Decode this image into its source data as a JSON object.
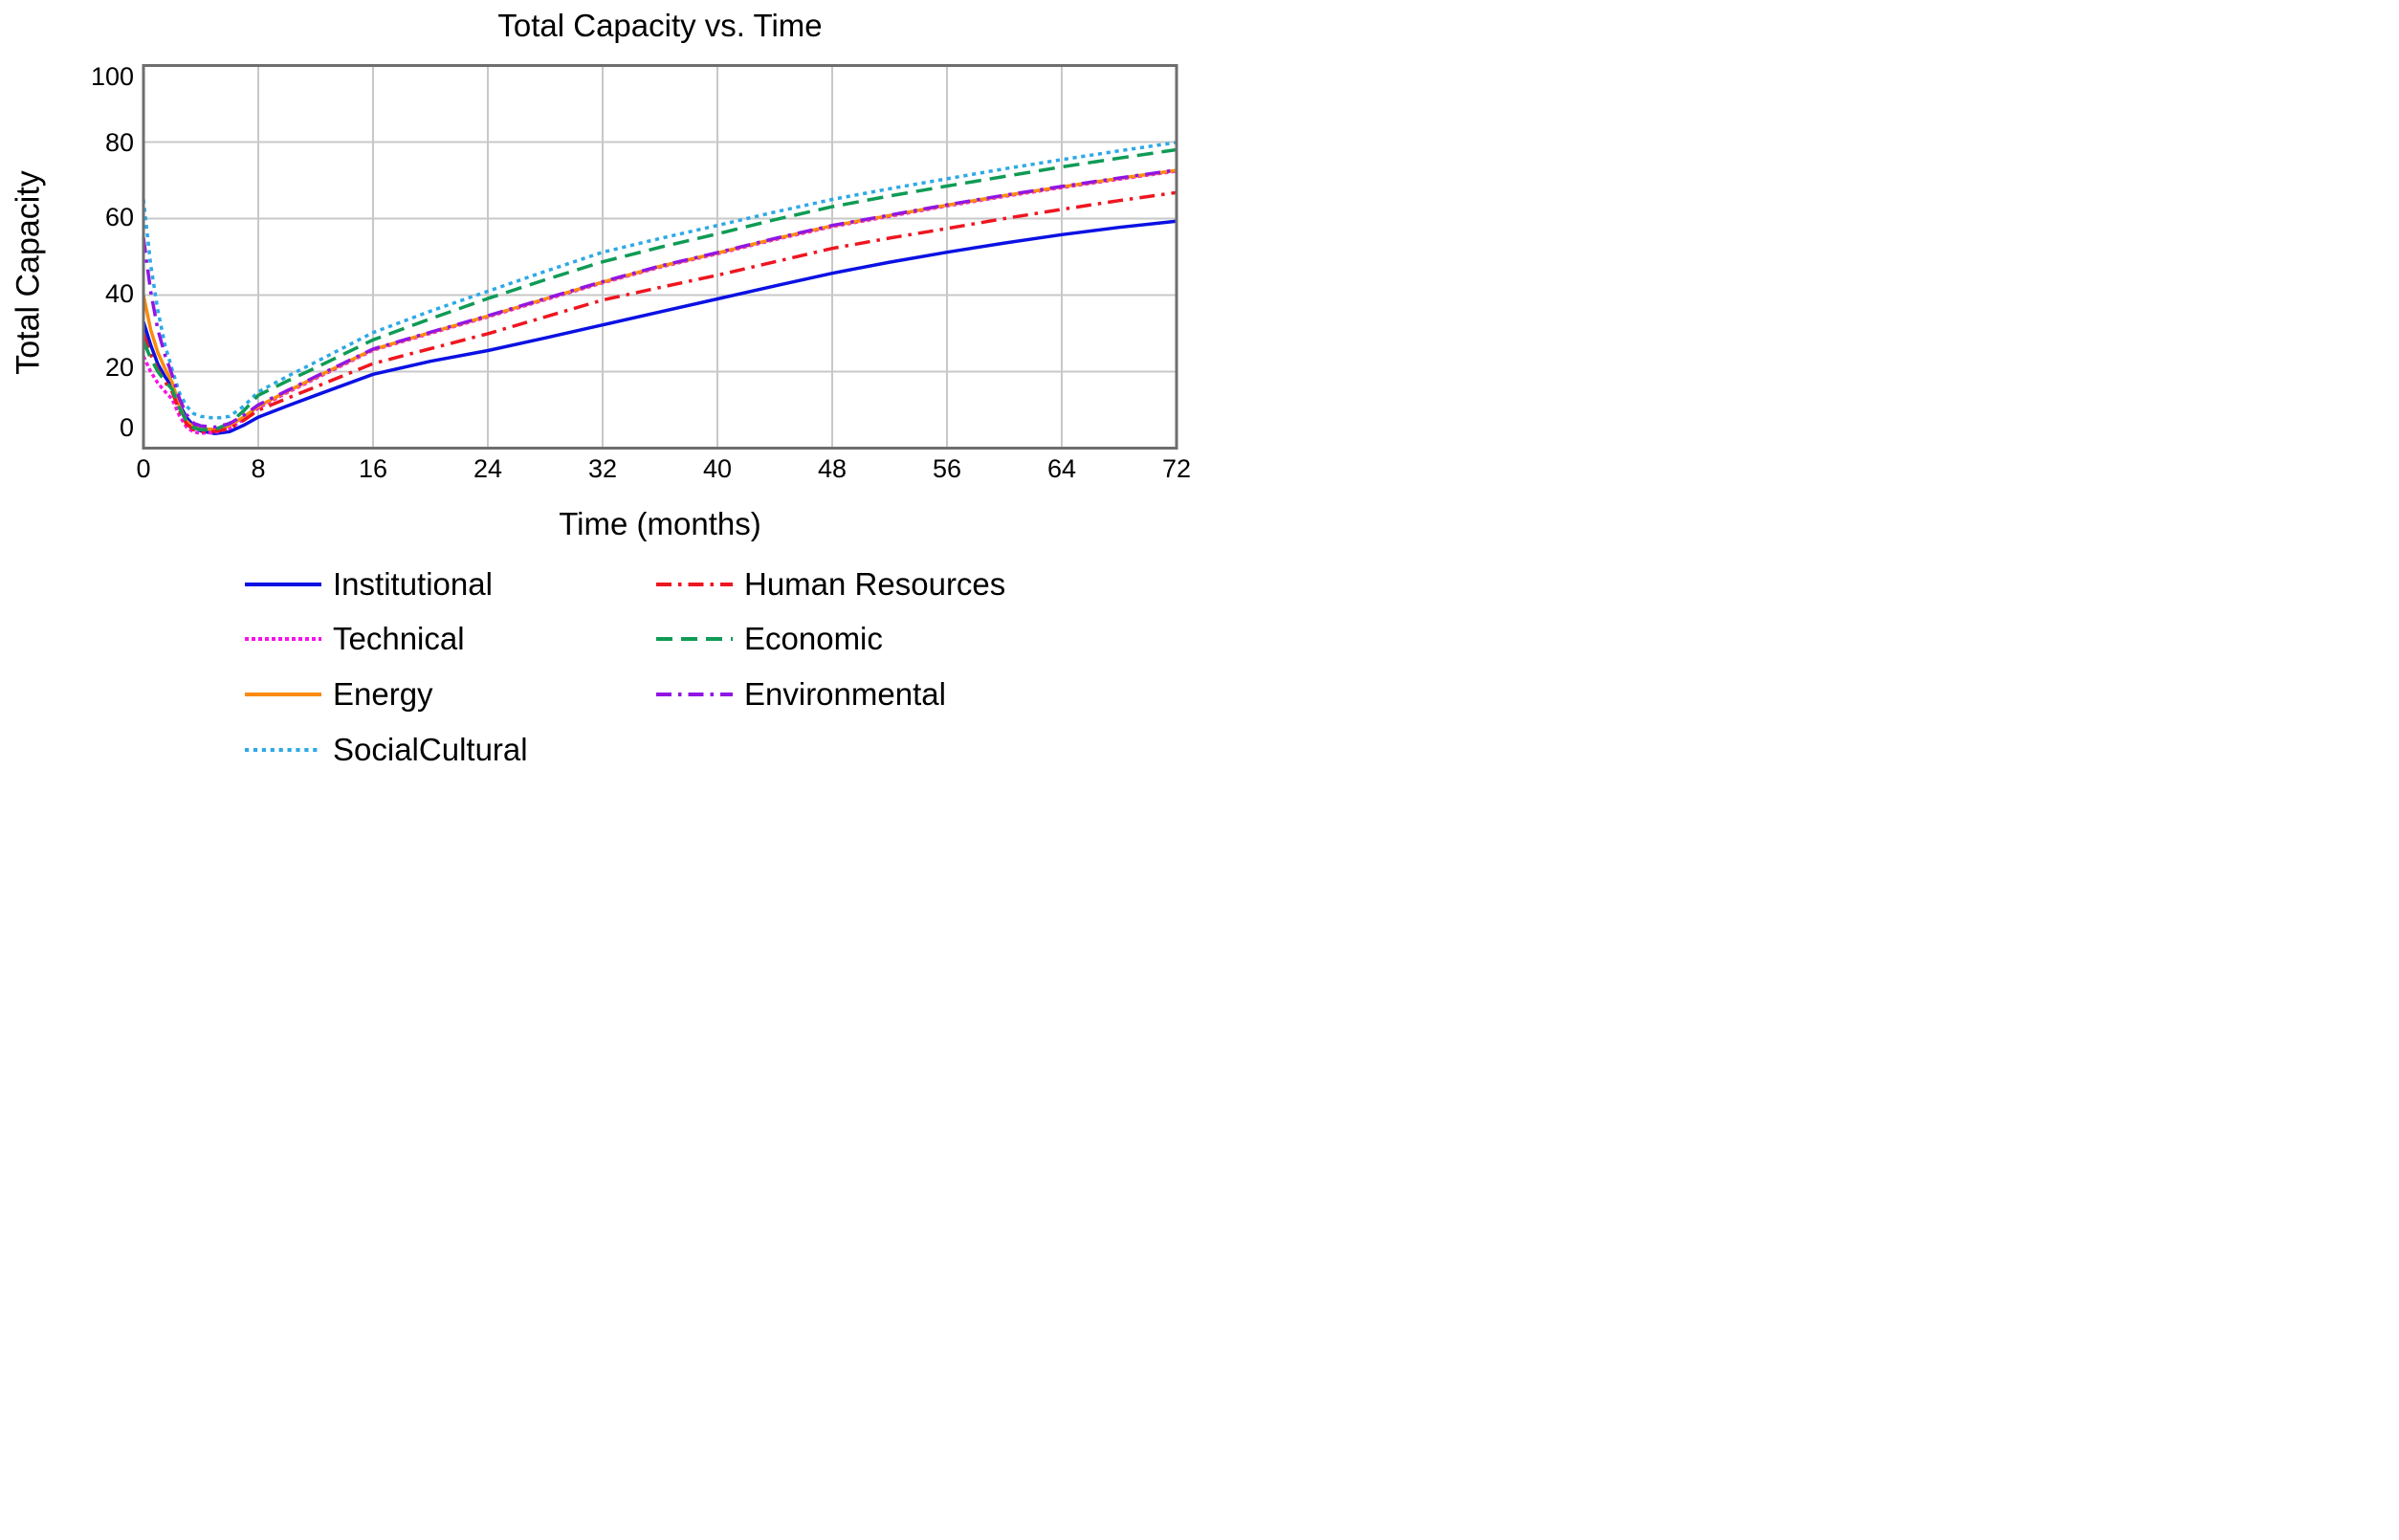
{
  "title": "Total Capacity vs. Time",
  "colors": {
    "background": "#ffffff",
    "grid": "#c8c8c8",
    "frame": "#6e6e6e",
    "text": "#000000"
  },
  "chart_data": {
    "type": "line",
    "title": "Total Capacity vs. Time",
    "xlabel": "Time (months)",
    "ylabel": "Total Capacity",
    "xlim": [
      0,
      72
    ],
    "ylim": [
      0,
      100
    ],
    "x_ticks": [
      0,
      8,
      16,
      24,
      32,
      40,
      48,
      56,
      64,
      72
    ],
    "y_ticks": [
      100,
      80,
      60,
      40,
      20,
      0
    ],
    "grid": true,
    "legend_position": "bottom",
    "x": [
      0,
      0.5,
      1,
      1.5,
      2,
      2.5,
      3,
      3.5,
      4,
      5,
      6,
      7,
      8,
      10,
      12,
      16,
      20,
      24,
      28,
      32,
      36,
      40,
      44,
      48,
      52,
      56,
      60,
      64,
      68,
      72
    ],
    "series": [
      {
        "name": "Institutional",
        "color": "#0b11e3",
        "dash": "solid",
        "values": [
          33,
          27,
          22,
          18.7,
          16,
          11.5,
          8,
          5.8,
          4.5,
          3.8,
          4.3,
          6,
          8.1,
          11,
          13.8,
          19.3,
          22.7,
          25.5,
          28.8,
          32.2,
          35.6,
          39,
          42.4,
          45.7,
          48.6,
          51.2,
          53.6,
          55.8,
          57.7,
          59.3
        ]
      },
      {
        "name": "Technical",
        "color": "#f812e8",
        "dash": "dotted-fine",
        "values": [
          24,
          20,
          17,
          14.8,
          12.8,
          8.5,
          5.5,
          4.2,
          3.9,
          4.1,
          5.2,
          7.6,
          10.5,
          14.5,
          18.2,
          25.6,
          30,
          34.3,
          38.8,
          43.2,
          47.3,
          50.8,
          54.5,
          57.9,
          60.6,
          63.3,
          65.8,
          68.1,
          70.3,
          72.4
        ]
      },
      {
        "name": "Energy",
        "color": "#fb8b0e",
        "dash": "solid",
        "values": [
          40,
          31,
          25,
          20.8,
          17.2,
          11,
          7,
          5.4,
          5,
          4.9,
          5.9,
          8.2,
          10.9,
          14.8,
          18.5,
          25.8,
          30.2,
          34.5,
          39,
          43.4,
          47.5,
          51,
          54.7,
          58.1,
          60.8,
          63.5,
          66,
          68.3,
          70.5,
          72.6
        ]
      },
      {
        "name": "SocialCultural",
        "color": "#2ea9e6",
        "dash": "dotted",
        "values": [
          65,
          48,
          36,
          27,
          20.5,
          14.5,
          11,
          9,
          8.3,
          7.8,
          8.3,
          11,
          14.7,
          18.7,
          22.5,
          30.2,
          35.8,
          41,
          46.2,
          51.2,
          54.8,
          58.2,
          61.7,
          65,
          67.8,
          70.4,
          73,
          75.4,
          77.7,
          79.9
        ]
      },
      {
        "name": "Human Resources",
        "color": "#ee1620",
        "dash": "dashdot",
        "values": [
          30,
          24.5,
          20.5,
          17.3,
          14.7,
          9.8,
          6.3,
          4.8,
          4.3,
          4.4,
          5.1,
          7.3,
          9.9,
          13,
          16,
          22.1,
          26,
          29.9,
          34.3,
          38.7,
          42,
          45.2,
          48.7,
          52.2,
          54.9,
          57.4,
          60,
          62.4,
          64.7,
          66.8
        ]
      },
      {
        "name": "Economic",
        "color": "#0f9b55",
        "dash": "dashed",
        "values": [
          28,
          23.5,
          20,
          17.5,
          15.4,
          10.5,
          7,
          5.3,
          4.8,
          4.9,
          6.5,
          9.8,
          13.8,
          17.5,
          21,
          28.3,
          33.8,
          39.1,
          44,
          48.7,
          52.5,
          56,
          59.7,
          63.1,
          65.9,
          68.5,
          71,
          73.5,
          75.8,
          78
        ]
      },
      {
        "name": "Environmental",
        "color": "#9115e5",
        "dash": "dashdot",
        "values": [
          55,
          41,
          31,
          24.3,
          19.1,
          13,
          8.8,
          6.5,
          5.8,
          5.5,
          6.4,
          8.6,
          11.3,
          15,
          18.7,
          25.9,
          30.3,
          34.6,
          39.1,
          43.5,
          47.6,
          51.1,
          54.8,
          58.2,
          60.9,
          63.6,
          66.1,
          68.4,
          70.6,
          72.7
        ]
      }
    ]
  },
  "legend": {
    "left_column": [
      "Institutional",
      "Technical",
      "Energy",
      "SocialCultural"
    ],
    "right_column": [
      "Human Resources",
      "Economic",
      "Environmental"
    ]
  }
}
